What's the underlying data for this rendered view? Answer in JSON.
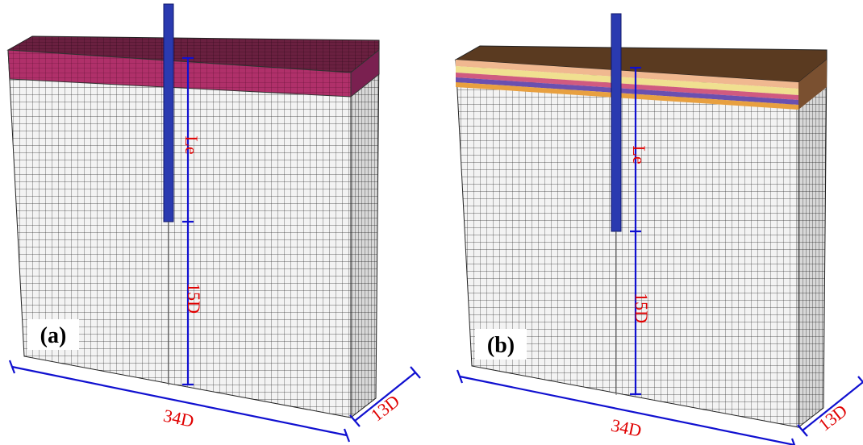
{
  "panels": [
    {
      "label": "(a)",
      "embedded_length": "Le",
      "below_tip": "15D",
      "width": "34D",
      "depth": "13D"
    },
    {
      "label": "(b)",
      "embedded_length": "Le",
      "below_tip": "15D",
      "width": "34D",
      "depth": "13D"
    }
  ]
}
